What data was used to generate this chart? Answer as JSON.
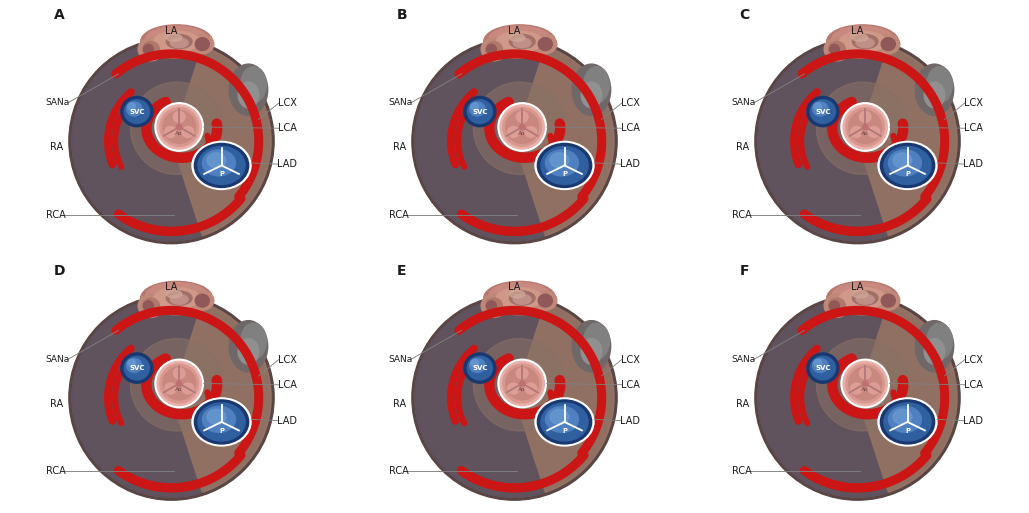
{
  "panels": [
    "A",
    "B",
    "C",
    "D",
    "E",
    "F"
  ],
  "background_color": "#ffffff",
  "heart_outer": "#6B5050",
  "heart_ra_dark": "#504848",
  "heart_center": "#786060",
  "heart_right": "#9A7868",
  "artery_red": "#CC1515",
  "la_salmon": "#C08078",
  "la_mid": "#B07068",
  "la_dark": "#906060",
  "la_inner": "#7A5050",
  "svc_outer": "#2A4A80",
  "svc_mid": "#4868A8",
  "svc_light": "#6888C0",
  "av_outer": "#E0A098",
  "av_ring": "#F0C0B8",
  "av_inner": "#D09090",
  "av_divider": "#907878",
  "pv_outer": "#1A3870",
  "pv_mid": "#3860A0",
  "pv_light": "#5888C8",
  "pv_divider": "#FFFFFF",
  "label_color": "#1A1A1A",
  "line_color": "#808080",
  "panel_label_fontsize": 10,
  "label_fontsize": 7.0,
  "figsize": [
    10.29,
    5.13
  ],
  "dpi": 100,
  "artery_lw": 6.5
}
